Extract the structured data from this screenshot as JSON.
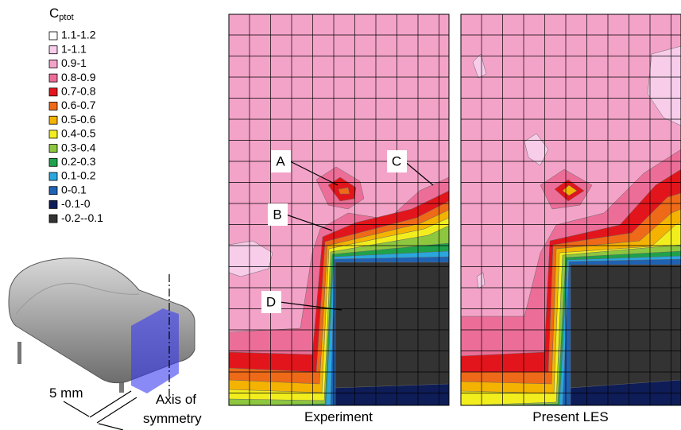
{
  "legend": {
    "symbol": "C",
    "subscript": "ptot",
    "items": [
      {
        "label": "1.1-1.2",
        "color": "#ffffff"
      },
      {
        "label": "1-1.1",
        "color": "#f7cdea"
      },
      {
        "label": "0.9-1",
        "color": "#f4a3c8"
      },
      {
        "label": "0.8-0.9",
        "color": "#ec6e98"
      },
      {
        "label": "0.7-0.8",
        "color": "#e3151c"
      },
      {
        "label": "0.6-0.7",
        "color": "#ee6a18"
      },
      {
        "label": "0.5-0.6",
        "color": "#f4b300"
      },
      {
        "label": "0.4-0.5",
        "color": "#f2ee1e"
      },
      {
        "label": "0.3-0.4",
        "color": "#8dc63f"
      },
      {
        "label": "0.2-0.3",
        "color": "#1fa24a"
      },
      {
        "label": "0.1-0.2",
        "color": "#29a7de"
      },
      {
        "label": "0-0.1",
        "color": "#1f62b3"
      },
      {
        "label": "-0.1-0",
        "color": "#0e1d58"
      },
      {
        "label": "-0.2--0.1",
        "color": "#333333"
      }
    ]
  },
  "panels": [
    {
      "title": "Experiment"
    },
    {
      "title": "Present LES"
    }
  ],
  "annotations": [
    "A",
    "B",
    "C",
    "D"
  ],
  "model": {
    "gap": "5 mm",
    "axis": [
      "Axis of",
      "symmetry"
    ]
  }
}
